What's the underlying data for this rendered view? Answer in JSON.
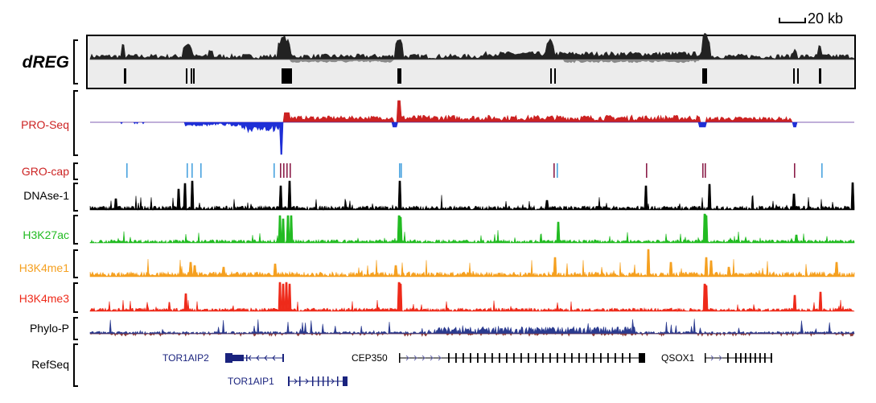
{
  "scale_bar": {
    "label": "20 kb"
  },
  "colors": {
    "dreg": "#222222",
    "dreg_minus": "#888888",
    "proseq_plus": "#cc2222",
    "proseq_minus": "#1f2fd6",
    "grocap_light": "#4aa3df",
    "grocap_dark": "#8b1f4a",
    "dnase": "#000000",
    "h3k27ac": "#22bb22",
    "h3k4me1": "#f5a020",
    "h3k4me3": "#ee2a1a",
    "phylop": "#2b3b8f",
    "refseq": "#1a237e",
    "refseq_gene": "#000000"
  },
  "tracks": [
    {
      "id": "dreg",
      "label": "dREG",
      "color": "#000000"
    },
    {
      "id": "proseq",
      "label": "PRO-Seq",
      "color": "#cc2222"
    },
    {
      "id": "grocap",
      "label": "GRO-cap",
      "color": "#cc2222"
    },
    {
      "id": "dnase",
      "label": "DNAse-1",
      "color": "#000000"
    },
    {
      "id": "h3k27ac",
      "label": "H3K27ac",
      "color": "#22bb22"
    },
    {
      "id": "h3k4me1",
      "label": "H3K4me1",
      "color": "#f5a020"
    },
    {
      "id": "h3k4me3",
      "label": "H3K4me3",
      "color": "#ee2a1a"
    },
    {
      "id": "phylop",
      "label": "Phylo-P",
      "color": "#000000"
    },
    {
      "id": "refseq",
      "label": "RefSeq",
      "color": "#000000"
    }
  ],
  "genes": [
    {
      "name": "TOR1AIP2",
      "color": "#1a237e"
    },
    {
      "name": "TOR1AIP1",
      "color": "#1a237e"
    },
    {
      "name": "CEP350",
      "color": "#000000"
    },
    {
      "name": "QSOX1",
      "color": "#000000"
    }
  ]
}
